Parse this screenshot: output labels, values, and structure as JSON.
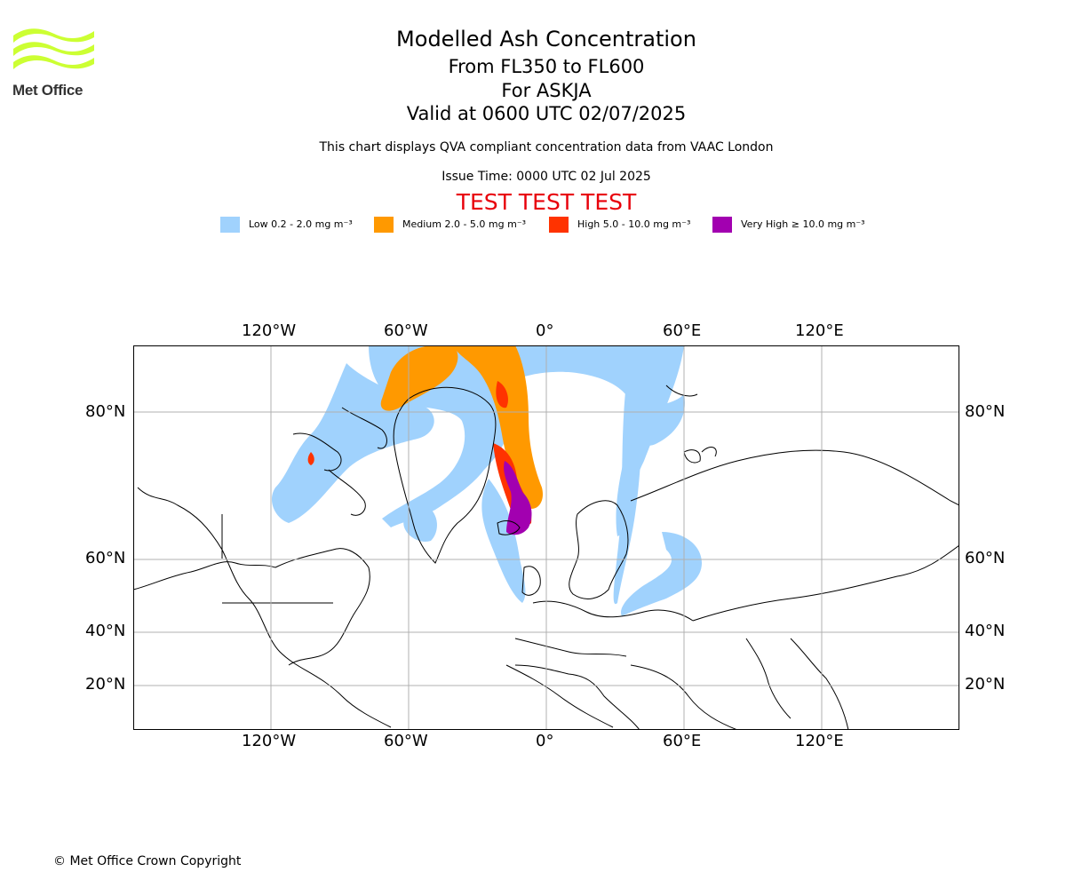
{
  "logo": {
    "text": "Met Office",
    "brand_color": "#ccff33"
  },
  "title": {
    "main": "Modelled Ash Concentration",
    "flight_levels": "From FL350 to FL600",
    "volcano": "For ASKJA",
    "valid": "Valid at 0600 UTC 02/07/2025",
    "description": "This chart displays QVA compliant concentration data from VAAC London",
    "issue_time": "Issue Time: 0000 UTC 02 Jul 2025",
    "test_banner": "TEST TEST TEST"
  },
  "legend": [
    {
      "label": "Low 0.2 - 2.0 mg m⁻³",
      "color": "#a0d2fd"
    },
    {
      "label": "Medium 2.0 - 5.0 mg m⁻³",
      "color": "#ff9900"
    },
    {
      "label": "High 5.0 - 10.0 mg m⁻³",
      "color": "#ff3300"
    },
    {
      "label": "Very High ≥ 10.0 mg m⁻³",
      "color": "#a200b0"
    }
  ],
  "map": {
    "lon_ticks": [
      "120°W",
      "60°W",
      "0°",
      "60°E",
      "120°E"
    ],
    "lat_ticks": [
      "80°N",
      "60°N",
      "40°N",
      "20°N"
    ],
    "grid": true
  },
  "footer": {
    "copyright": "© Met Office Crown Copyright"
  }
}
